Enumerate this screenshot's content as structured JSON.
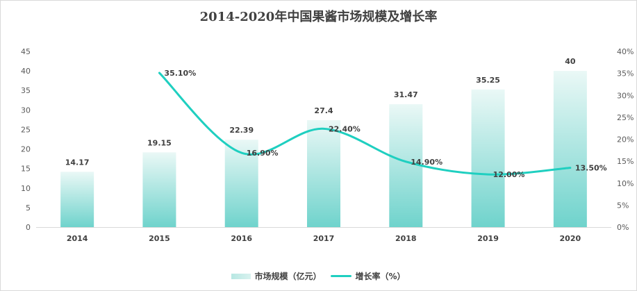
{
  "chart_data": {
    "type": "bar+line",
    "title": "2014-2020年中国果酱市场规模及增长率",
    "categories": [
      "2014",
      "2015",
      "2016",
      "2017",
      "2018",
      "2019",
      "2020"
    ],
    "series": [
      {
        "name": "市场规模（亿元）",
        "type": "bar",
        "axis": "left",
        "values": [
          14.17,
          19.15,
          22.39,
          27.4,
          31.47,
          35.25,
          40
        ],
        "labels": [
          "14.17",
          "19.15",
          "22.39",
          "27.4",
          "31.47",
          "35.25",
          "40"
        ]
      },
      {
        "name": "增长率（%）",
        "type": "line",
        "axis": "right",
        "values": [
          null,
          35.1,
          16.9,
          22.4,
          14.9,
          12.0,
          13.5
        ],
        "labels": [
          "",
          "35.10%",
          "16.90%",
          "22.40%",
          "14.90%",
          "12.00%",
          "13.50%"
        ]
      }
    ],
    "y_left": {
      "ylim": [
        0,
        45
      ],
      "ticks": [
        "0",
        "5",
        "10",
        "15",
        "20",
        "25",
        "30",
        "35",
        "40",
        "45"
      ]
    },
    "y_right": {
      "ylim": [
        0,
        40
      ],
      "ticks": [
        "0%",
        "5%",
        "10%",
        "15%",
        "20%",
        "25%",
        "30%",
        "35%",
        "40%"
      ]
    },
    "grid": false,
    "legend_position": "bottom",
    "colors": {
      "bar_bottom": "#6fd3cc",
      "bar_top": "#eaf8f6",
      "line": "#1fcfc0"
    }
  }
}
